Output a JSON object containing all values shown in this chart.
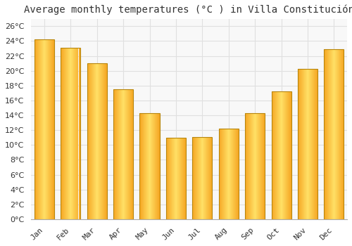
{
  "title": "Average monthly temperatures (°C ) in Villa Constitución",
  "months": [
    "Jan",
    "Feb",
    "Mar",
    "Apr",
    "May",
    "Jun",
    "Jul",
    "Aug",
    "Sep",
    "Oct",
    "Nov",
    "Dec"
  ],
  "values": [
    24.2,
    23.1,
    21.0,
    17.5,
    14.3,
    11.0,
    11.1,
    12.2,
    14.3,
    17.2,
    20.3,
    22.9
  ],
  "bar_color_center": "#FFD966",
  "bar_color_edge": "#F0A500",
  "bar_border_color": "#B8860B",
  "background_color": "#ffffff",
  "plot_bg_color": "#f8f8f8",
  "grid_color": "#e0e0e0",
  "text_color": "#333333",
  "ylim": [
    0,
    27
  ],
  "yticks": [
    0,
    2,
    4,
    6,
    8,
    10,
    12,
    14,
    16,
    18,
    20,
    22,
    24,
    26
  ],
  "title_fontsize": 10,
  "tick_fontsize": 8,
  "bar_width": 0.75
}
